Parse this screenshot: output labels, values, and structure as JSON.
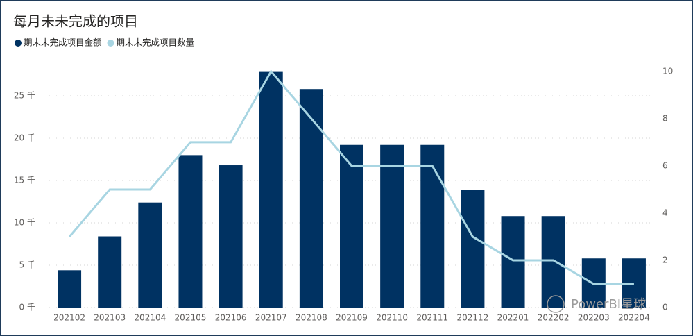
{
  "chart_data": {
    "type": "bar_line",
    "title": "每月未未完成的项目",
    "categories": [
      "202102",
      "202103",
      "202104",
      "202105",
      "202106",
      "202107",
      "202108",
      "202109",
      "202110",
      "202111",
      "202112",
      "202201",
      "202202",
      "202203",
      "202204"
    ],
    "series": [
      {
        "name": "期末未完成项目金额",
        "color": "#003262",
        "type": "bar",
        "values": [
          4400,
          8400,
          12400,
          18000,
          16800,
          27900,
          25800,
          19200,
          19200,
          19200,
          13900,
          10800,
          10800,
          5800,
          5800
        ]
      },
      {
        "name": "期末未完成项目数量",
        "color": "#a8d5e2",
        "type": "line",
        "axis": "y2",
        "values": [
          3,
          5,
          5,
          7,
          7,
          10,
          8,
          6,
          6,
          6,
          3,
          2,
          2,
          1,
          1
        ]
      }
    ],
    "ylim": [
      0,
      28850
    ],
    "yticks": [
      {
        "value": 0,
        "label": "0 千"
      },
      {
        "value": 5000,
        "label": "5 千"
      },
      {
        "value": 10000,
        "label": "10 千"
      },
      {
        "value": 15000,
        "label": "15 千"
      },
      {
        "value": 20000,
        "label": "20 千"
      },
      {
        "value": 25000,
        "label": "25 千"
      }
    ],
    "y2lim": [
      0,
      10.35
    ],
    "y2ticks": [
      0,
      2,
      4,
      6,
      8,
      10
    ],
    "grid": true,
    "legend": "top-left",
    "watermark": "PowerBI星球"
  }
}
